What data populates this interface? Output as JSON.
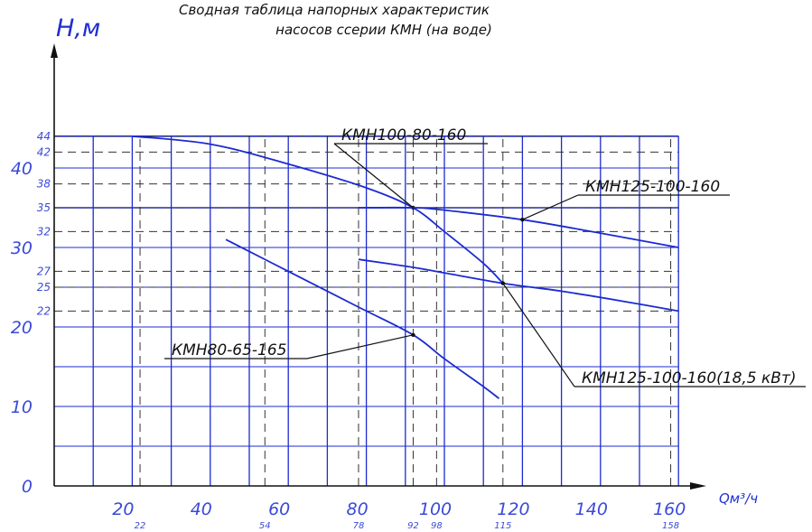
{
  "chart_data": {
    "type": "line",
    "title": "Сводная таблица напорных характеристик",
    "subtitle": "насосов ссерии КМН (на воде)",
    "ylabel": "Н,м",
    "xlabel": "Qм³/ч",
    "xlim": [
      0,
      160
    ],
    "ylim": [
      0,
      44
    ],
    "grid": true,
    "x_major_ticks": [
      "20",
      "40",
      "60",
      "80",
      "100",
      "120",
      "140",
      "160"
    ],
    "x_minor_ticks": [
      "22",
      "54",
      "78",
      "92",
      "98",
      "115",
      "158"
    ],
    "y_major_ticks": [
      "0",
      "10",
      "20",
      "30",
      "40"
    ],
    "y_minor_ticks": [
      "22",
      "25",
      "27",
      "32",
      "35",
      "38",
      "42",
      "44"
    ],
    "series": [
      {
        "name": "КМН100-80-160",
        "color": "#1c2bd0",
        "x": [
          20,
          40,
          60,
          80,
          92,
          100,
          110,
          115
        ],
        "y": [
          44,
          43,
          40.5,
          37.5,
          35,
          32,
          28,
          25.5
        ]
      },
      {
        "name": "КМН125-100-160",
        "color": "#1c2bd0",
        "x": [
          78,
          92,
          100,
          120,
          140,
          160
        ],
        "y": [
          35,
          35,
          34.7,
          33.5,
          31.8,
          30
        ]
      },
      {
        "name": "КМН80-65-165",
        "color": "#1c2bd0",
        "x": [
          44,
          60,
          78,
          92,
          100,
          110,
          114
        ],
        "y": [
          31,
          27,
          22.5,
          19,
          16,
          12.5,
          11
        ]
      },
      {
        "name": "КМН125-100-160(18,5 кВт)",
        "color": "#1c2bd0",
        "x": [
          78,
          92,
          100,
          115,
          130,
          145,
          160
        ],
        "y": [
          28.5,
          27.5,
          26.8,
          25.5,
          24.5,
          23.3,
          22
        ]
      }
    ]
  }
}
